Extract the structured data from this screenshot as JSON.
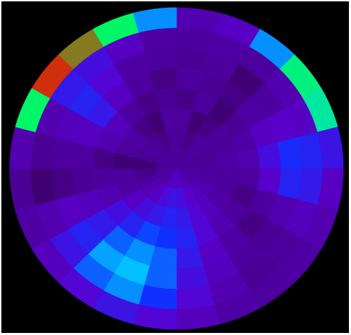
{
  "chart_data": {
    "type": "polar-heatmap",
    "zlim": [
      0,
      1
    ],
    "colorscale": [
      "#200028",
      "#4a0090",
      "#5a00d0",
      "#1030ff",
      "#00d0ff",
      "#00ff40",
      "#ff0000"
    ],
    "values": [
      [
        0.2,
        0.18,
        0.2,
        0.2,
        0.19,
        0.2,
        0.2,
        0.22,
        0.22,
        0.25,
        0.28,
        0.3,
        0.3,
        0.28,
        0.25,
        0.22,
        0.2,
        0.2,
        0.18,
        0.2,
        0.2,
        0.19,
        0.2,
        0.2
      ],
      [
        0.18,
        0.15,
        0.2,
        0.2,
        0.18,
        0.2,
        0.2,
        0.22,
        0.25,
        0.28,
        0.32,
        0.38,
        0.4,
        0.36,
        0.3,
        0.25,
        0.2,
        0.15,
        0.12,
        0.18,
        0.2,
        0.18,
        0.15,
        0.2
      ],
      [
        0.2,
        0.12,
        0.15,
        0.2,
        0.2,
        0.22,
        0.2,
        0.2,
        0.22,
        0.28,
        0.35,
        0.42,
        0.45,
        0.42,
        0.38,
        0.3,
        0.22,
        0.2,
        0.12,
        0.2,
        0.22,
        0.15,
        0.12,
        0.2
      ],
      [
        0.15,
        0.2,
        0.12,
        0.18,
        0.22,
        0.25,
        0.2,
        0.15,
        0.2,
        0.25,
        0.35,
        0.45,
        0.5,
        0.52,
        0.45,
        0.38,
        0.25,
        0.2,
        0.15,
        0.25,
        0.28,
        0.2,
        0.15,
        0.18
      ],
      [
        0.2,
        0.18,
        0.15,
        0.22,
        0.3,
        0.38,
        0.32,
        0.2,
        0.15,
        0.22,
        0.3,
        0.42,
        0.55,
        0.6,
        0.55,
        0.42,
        0.28,
        0.18,
        0.2,
        0.3,
        0.42,
        0.3,
        0.2,
        0.15
      ],
      [
        0.18,
        0.2,
        0.12,
        0.2,
        0.32,
        0.48,
        0.45,
        0.25,
        0.18,
        0.2,
        0.28,
        0.38,
        0.55,
        0.65,
        0.62,
        0.45,
        0.3,
        0.15,
        0.2,
        0.28,
        0.45,
        0.35,
        0.22,
        0.2
      ],
      [
        0.2,
        0.22,
        0.2,
        0.25,
        0.3,
        0.45,
        0.42,
        0.28,
        0.2,
        0.18,
        0.25,
        0.35,
        0.5,
        0.6,
        0.55,
        0.4,
        0.25,
        0.12,
        0.18,
        0.25,
        0.42,
        0.38,
        0.3,
        0.22
      ],
      [
        0.25,
        0.3,
        0.6,
        0.78,
        0.75,
        0.4,
        0.3,
        0.25,
        0.22,
        0.2,
        0.22,
        0.28,
        0.35,
        0.4,
        0.35,
        0.28,
        0.22,
        0.18,
        0.25,
        0.8,
        0.97,
        0.92,
        0.8,
        0.6
      ]
    ]
  }
}
